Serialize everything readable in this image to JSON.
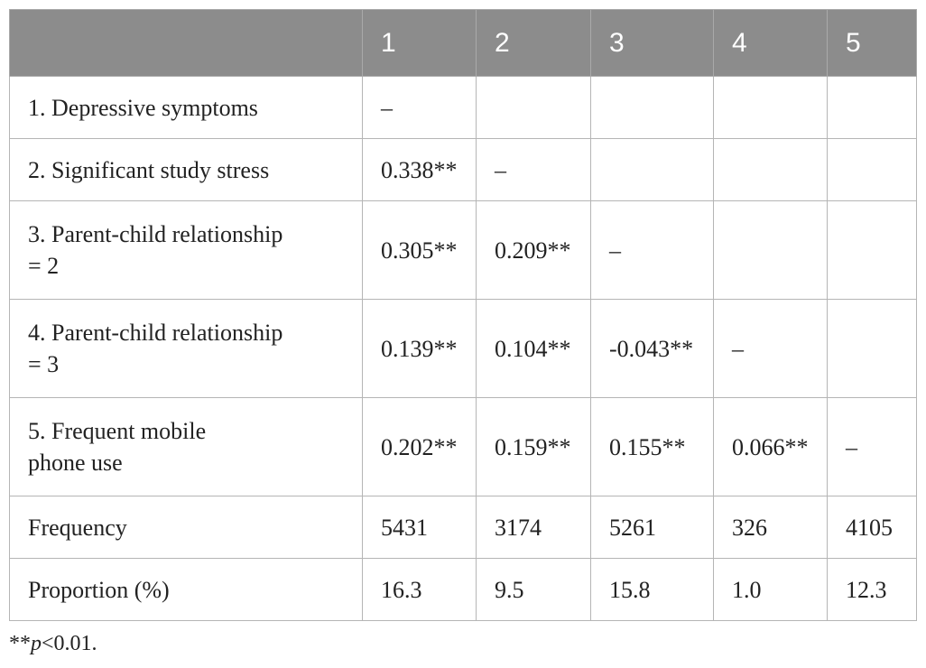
{
  "table": {
    "header": [
      "",
      "1",
      "2",
      "3",
      "4",
      "5"
    ],
    "rows": [
      {
        "label": "1. Depressive symptoms",
        "cells": [
          "–",
          "",
          "",
          "",
          ""
        ]
      },
      {
        "label": "2. Significant study stress",
        "cells": [
          "0.338**",
          "–",
          "",
          "",
          ""
        ]
      },
      {
        "label_line1": "3. Parent-child relationship",
        "label_line2": "= 2",
        "cells": [
          "0.305**",
          "0.209**",
          "–",
          "",
          ""
        ]
      },
      {
        "label_line1": "4. Parent-child relationship",
        "label_line2": "= 3",
        "cells": [
          "0.139**",
          "0.104**",
          "-0.043**",
          "–",
          ""
        ]
      },
      {
        "label_line1": "5. Frequent mobile",
        "label_line2": "phone use",
        "cells": [
          "0.202**",
          "0.159**",
          "0.155**",
          "0.066**",
          "–"
        ]
      },
      {
        "label": "Frequency",
        "cells": [
          "5431",
          "3174",
          "5261",
          "326",
          "4105"
        ]
      },
      {
        "label": "Proportion (%)",
        "cells": [
          "16.3",
          "9.5",
          "15.8",
          "1.0",
          "12.3"
        ]
      }
    ]
  },
  "footnote": {
    "stars": "**",
    "p": "p",
    "rest": "<0.01."
  }
}
